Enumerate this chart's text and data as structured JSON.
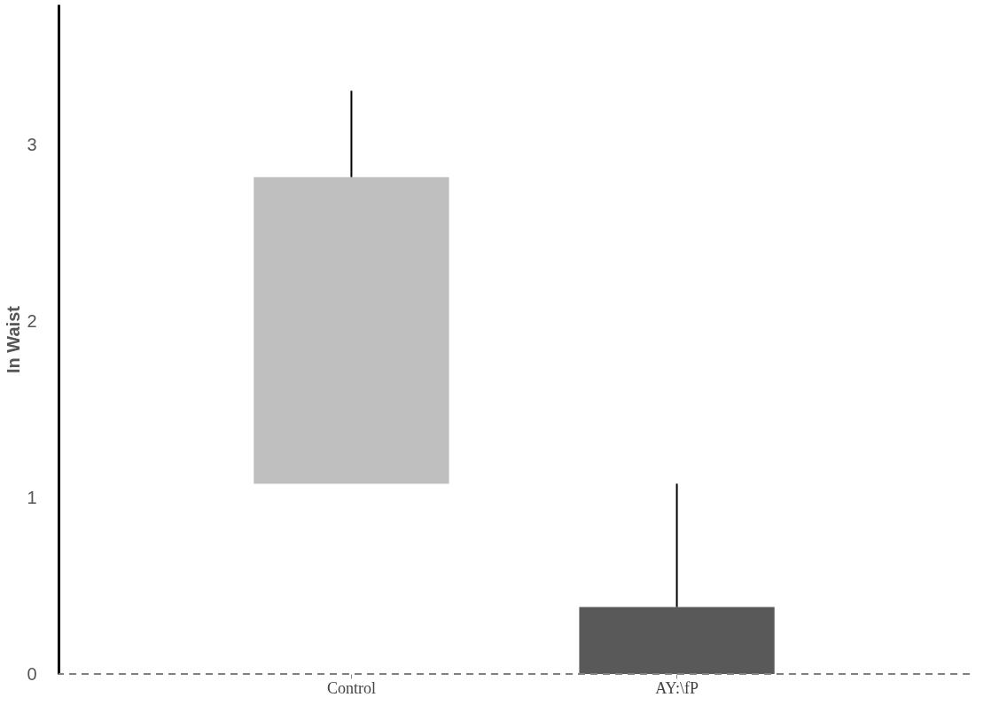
{
  "chart_data": {
    "type": "bar",
    "ylabel": "In Waist",
    "categories": [
      "Control",
      "AY:\\fP"
    ],
    "values": [
      1.74,
      0.38
    ],
    "base": [
      1.08,
      0
    ],
    "colors": [
      "#bfbfbf",
      "#595959"
    ],
    "errors": [
      [
        2.82,
        3.31
      ],
      [
        0.38,
        1.08
      ]
    ],
    "ylim": [
      0,
      3.8
    ],
    "yticks": [
      0,
      1,
      2,
      3
    ],
    "grid": false,
    "ref_lines": [
      {
        "axis": "y",
        "value": 0,
        "label": null,
        "color": "#808080",
        "line_style": "dashed"
      }
    ]
  }
}
